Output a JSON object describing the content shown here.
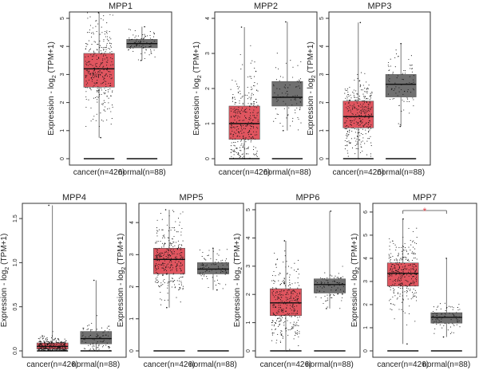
{
  "figure": {
    "ylabel_prefix": "Expression - log",
    "ylabel_sub": "2",
    "ylabel_suffix": " (TPM+1)",
    "colors": {
      "cancer": "#e0555f",
      "normal": "#707070",
      "points": "#111111",
      "significance": "#e8474f"
    }
  },
  "chart_data": [
    {
      "type": "box",
      "title": "MPP1",
      "categories": [
        "cancer(n=426)",
        "normal(n=88)"
      ],
      "ylim": [
        0,
        5
      ],
      "yticks": [
        0,
        1,
        2,
        3,
        4,
        5
      ],
      "series": [
        {
          "name": "cancer",
          "n": 426,
          "min": 0.75,
          "q1": 2.55,
          "median": 3.2,
          "q3": 3.75,
          "max": 5.2
        },
        {
          "name": "normal",
          "n": 88,
          "min": 3.5,
          "q1": 3.95,
          "median": 4.1,
          "q3": 4.25,
          "max": 4.7
        }
      ],
      "significant": false
    },
    {
      "type": "box",
      "title": "MPP2",
      "categories": [
        "cancer(n=426)",
        "normal(n=88)"
      ],
      "ylim": [
        0,
        4
      ],
      "yticks": [
        0,
        1,
        2,
        3,
        4
      ],
      "series": [
        {
          "name": "cancer",
          "n": 426,
          "min": 0,
          "q1": 0.55,
          "median": 1.0,
          "q3": 1.5,
          "max": 3.75
        },
        {
          "name": "normal",
          "n": 88,
          "min": 0.8,
          "q1": 1.5,
          "median": 1.75,
          "q3": 2.2,
          "max": 3.9
        }
      ],
      "significant": false
    },
    {
      "type": "box",
      "title": "MPP3",
      "categories": [
        "cancer(n=426)",
        "normal(n=88)"
      ],
      "ylim": [
        0,
        5
      ],
      "yticks": [
        0,
        1,
        2,
        3,
        4,
        5
      ],
      "series": [
        {
          "name": "cancer",
          "n": 426,
          "min": 0,
          "q1": 1.1,
          "median": 1.5,
          "q3": 2.05,
          "max": 4.85
        },
        {
          "name": "normal",
          "n": 88,
          "min": 1.15,
          "q1": 2.2,
          "median": 2.65,
          "q3": 3.0,
          "max": 4.1
        }
      ],
      "significant": false
    },
    {
      "type": "box",
      "title": "MPP4",
      "categories": [
        "cancer(n=426)",
        "normal(n=88)"
      ],
      "ylim": [
        0,
        1.6
      ],
      "yticks": [
        0.0,
        0.5,
        1.0,
        1.5
      ],
      "series": [
        {
          "name": "cancer",
          "n": 426,
          "min": 0,
          "q1": 0.02,
          "median": 0.05,
          "q3": 0.09,
          "max": 1.65
        },
        {
          "name": "normal",
          "n": 88,
          "min": 0,
          "q1": 0.08,
          "median": 0.14,
          "q3": 0.22,
          "max": 0.8
        }
      ],
      "significant": false
    },
    {
      "type": "box",
      "title": "MPP5",
      "categories": [
        "cancer(n=426)",
        "normal(n=88)"
      ],
      "ylim": [
        0,
        4.4
      ],
      "yticks": [
        0,
        1,
        2,
        3,
        4
      ],
      "series": [
        {
          "name": "cancer",
          "n": 426,
          "min": 1.35,
          "q1": 2.4,
          "median": 2.85,
          "q3": 3.2,
          "max": 4.4
        },
        {
          "name": "normal",
          "n": 88,
          "min": 1.9,
          "q1": 2.4,
          "median": 2.55,
          "q3": 2.75,
          "max": 3.2
        }
      ],
      "significant": false
    },
    {
      "type": "box",
      "title": "MPP6",
      "categories": [
        "cancer(n=426)",
        "normal(n=88)"
      ],
      "ylim": [
        0,
        5
      ],
      "yticks": [
        0,
        1,
        2,
        3,
        4,
        5
      ],
      "series": [
        {
          "name": "cancer",
          "n": 426,
          "min": 0,
          "q1": 1.25,
          "median": 1.7,
          "q3": 2.2,
          "max": 3.9
        },
        {
          "name": "normal",
          "n": 88,
          "min": 1.5,
          "q1": 2.05,
          "median": 2.35,
          "q3": 2.55,
          "max": 4.95
        }
      ],
      "significant": false
    },
    {
      "type": "box",
      "title": "MPP7",
      "categories": [
        "cancer(n=426)",
        "normal(n=88)"
      ],
      "ylim": [
        0,
        6.1
      ],
      "yticks": [
        0,
        1,
        2,
        3,
        4,
        5,
        6
      ],
      "series": [
        {
          "name": "cancer",
          "n": 426,
          "min": 0.3,
          "q1": 2.8,
          "median": 3.35,
          "q3": 3.8,
          "max": 5.7
        },
        {
          "name": "normal",
          "n": 88,
          "min": 0.6,
          "q1": 1.2,
          "median": 1.45,
          "q3": 1.65,
          "max": 4.0
        }
      ],
      "significant": true,
      "significance_label": "*"
    }
  ]
}
